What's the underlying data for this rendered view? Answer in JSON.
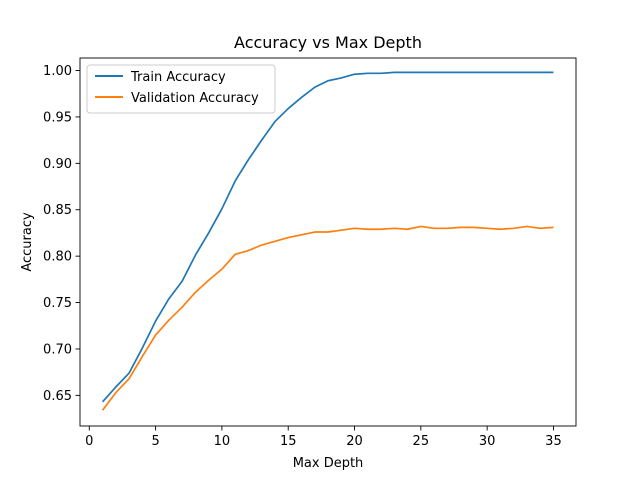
{
  "chart_data": {
    "type": "line",
    "title": "Accuracy vs Max Depth",
    "xlabel": "Max Depth",
    "ylabel": "Accuracy",
    "xlim": [
      -0.7,
      36.7
    ],
    "ylim": [
      0.617,
      1.0135
    ],
    "xticks": [
      0,
      5,
      10,
      15,
      20,
      25,
      30,
      35
    ],
    "yticks": [
      0.65,
      0.7,
      0.75,
      0.8,
      0.85,
      0.9,
      0.95,
      1.0
    ],
    "ytick_labels": [
      "0.65",
      "0.70",
      "0.75",
      "0.80",
      "0.85",
      "0.90",
      "0.95",
      "1.00"
    ],
    "grid": false,
    "legend_position": "upper-left",
    "x": [
      1,
      2,
      3,
      4,
      5,
      6,
      7,
      8,
      9,
      10,
      11,
      12,
      13,
      14,
      15,
      16,
      17,
      18,
      19,
      20,
      21,
      22,
      23,
      24,
      25,
      26,
      27,
      28,
      29,
      30,
      31,
      32,
      33,
      34,
      35
    ],
    "series": [
      {
        "name": "Train Accuracy",
        "color": "#1f77b4",
        "values": [
          0.643,
          0.659,
          0.674,
          0.701,
          0.73,
          0.754,
          0.773,
          0.801,
          0.825,
          0.851,
          0.881,
          0.904,
          0.925,
          0.945,
          0.959,
          0.971,
          0.982,
          0.989,
          0.992,
          0.996,
          0.997,
          0.997,
          0.998,
          0.998,
          0.998,
          0.998,
          0.998,
          0.998,
          0.998,
          0.998,
          0.998,
          0.998,
          0.998,
          0.998,
          0.998
        ]
      },
      {
        "name": "Validation Accuracy",
        "color": "#ff7f0e",
        "values": [
          0.634,
          0.653,
          0.668,
          0.692,
          0.715,
          0.731,
          0.745,
          0.761,
          0.774,
          0.786,
          0.802,
          0.806,
          0.812,
          0.816,
          0.82,
          0.823,
          0.826,
          0.826,
          0.828,
          0.83,
          0.829,
          0.829,
          0.83,
          0.829,
          0.832,
          0.83,
          0.83,
          0.831,
          0.831,
          0.83,
          0.829,
          0.83,
          0.832,
          0.83,
          0.831
        ]
      }
    ]
  }
}
